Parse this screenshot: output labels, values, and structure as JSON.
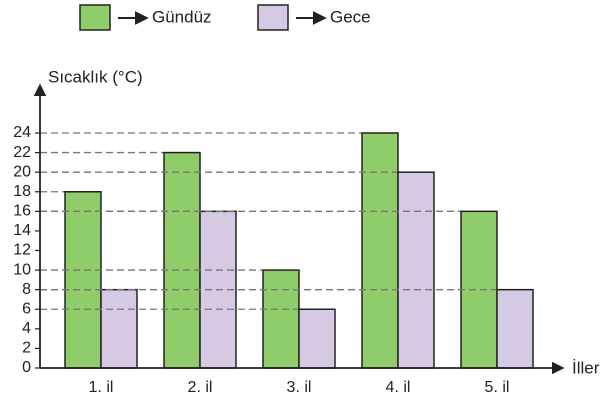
{
  "chart_data": {
    "type": "bar",
    "y_label": "Sıcaklık (°C)",
    "x_label": "İller",
    "categories": [
      "1. il",
      "2. il",
      "3. il",
      "4. il",
      "5. il"
    ],
    "series": [
      {
        "name": "Gündüz",
        "color": "#8fcc6a",
        "values": [
          18,
          22,
          10,
          24,
          16
        ]
      },
      {
        "name": "Gece",
        "color": "#d5c9e3",
        "values": [
          8,
          16,
          6,
          20,
          8
        ]
      }
    ],
    "ylim": [
      0,
      24
    ],
    "yticks": [
      0,
      2,
      4,
      6,
      8,
      10,
      12,
      14,
      16,
      18,
      20,
      22,
      24
    ]
  }
}
